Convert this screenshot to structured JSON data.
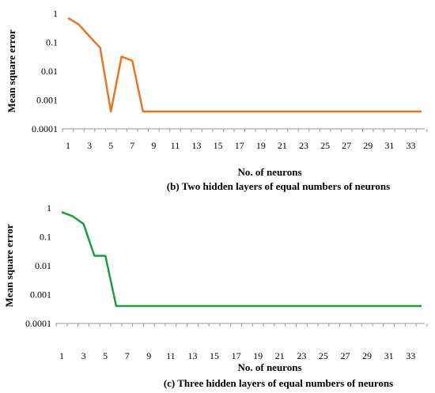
{
  "chart_data": [
    {
      "type": "line",
      "panel": "b",
      "caption": "(b) Two hidden layers of equal numbers of neurons",
      "xlabel": "No. of neurons",
      "ylabel": "Mean square error",
      "yscale": "log",
      "ylim": [
        0.0001,
        1
      ],
      "ytick_labels": [
        "1",
        "0.1",
        "0.01",
        "0.001",
        "0.0001"
      ],
      "xtick_labels": [
        "1",
        "3",
        "5",
        "7",
        "9",
        "11",
        "13",
        "15",
        "17",
        "19",
        "21",
        "23",
        "25",
        "27",
        "29",
        "31",
        "33"
      ],
      "color": "#E87722",
      "x": [
        1,
        2,
        3,
        4,
        5,
        6,
        7,
        8,
        9,
        10,
        11,
        12,
        13,
        14,
        15,
        16,
        17,
        18,
        19,
        20,
        21,
        22,
        23,
        24,
        25,
        26,
        27,
        28,
        29,
        30,
        31,
        32,
        33,
        34
      ],
      "values": [
        0.7,
        0.42,
        0.16,
        0.065,
        0.0004,
        0.032,
        0.023,
        0.0004,
        0.0004,
        0.0004,
        0.0004,
        0.0004,
        0.0004,
        0.0004,
        0.0004,
        0.0004,
        0.0004,
        0.0004,
        0.0004,
        0.0004,
        0.0004,
        0.0004,
        0.0004,
        0.0004,
        0.0004,
        0.0004,
        0.0004,
        0.0004,
        0.0004,
        0.0004,
        0.0004,
        0.0004,
        0.0004,
        0.0004
      ]
    },
    {
      "type": "line",
      "panel": "c",
      "caption": "(c) Three hidden layers of equal numbers of neurons",
      "xlabel": "No. of neurons",
      "ylabel": "Mean square error",
      "yscale": "log",
      "ylim": [
        0.0001,
        1
      ],
      "ytick_labels": [
        "1",
        "0.1",
        "0.01",
        "0.001",
        "0.0001"
      ],
      "xtick_labels": [
        "1",
        "3",
        "5",
        "7",
        "9",
        "11",
        "13",
        "15",
        "17",
        "19",
        "21",
        "23",
        "25",
        "27",
        "29",
        "31",
        "33"
      ],
      "color": "#1A9E3F",
      "x": [
        1,
        2,
        3,
        4,
        5,
        6,
        7,
        8,
        9,
        10,
        11,
        12,
        13,
        14,
        15,
        16,
        17,
        18,
        19,
        20,
        21,
        22,
        23,
        24,
        25,
        26,
        27,
        28,
        29,
        30,
        31,
        32,
        33,
        34
      ],
      "values": [
        0.72,
        0.52,
        0.28,
        0.022,
        0.022,
        0.0004,
        0.0004,
        0.0004,
        0.0004,
        0.0004,
        0.0004,
        0.0004,
        0.0004,
        0.0004,
        0.0004,
        0.0004,
        0.0004,
        0.0004,
        0.0004,
        0.0004,
        0.0004,
        0.0004,
        0.0004,
        0.0004,
        0.0004,
        0.0004,
        0.0004,
        0.0004,
        0.0004,
        0.0004,
        0.0004,
        0.0004,
        0.0004,
        0.0004
      ]
    }
  ]
}
